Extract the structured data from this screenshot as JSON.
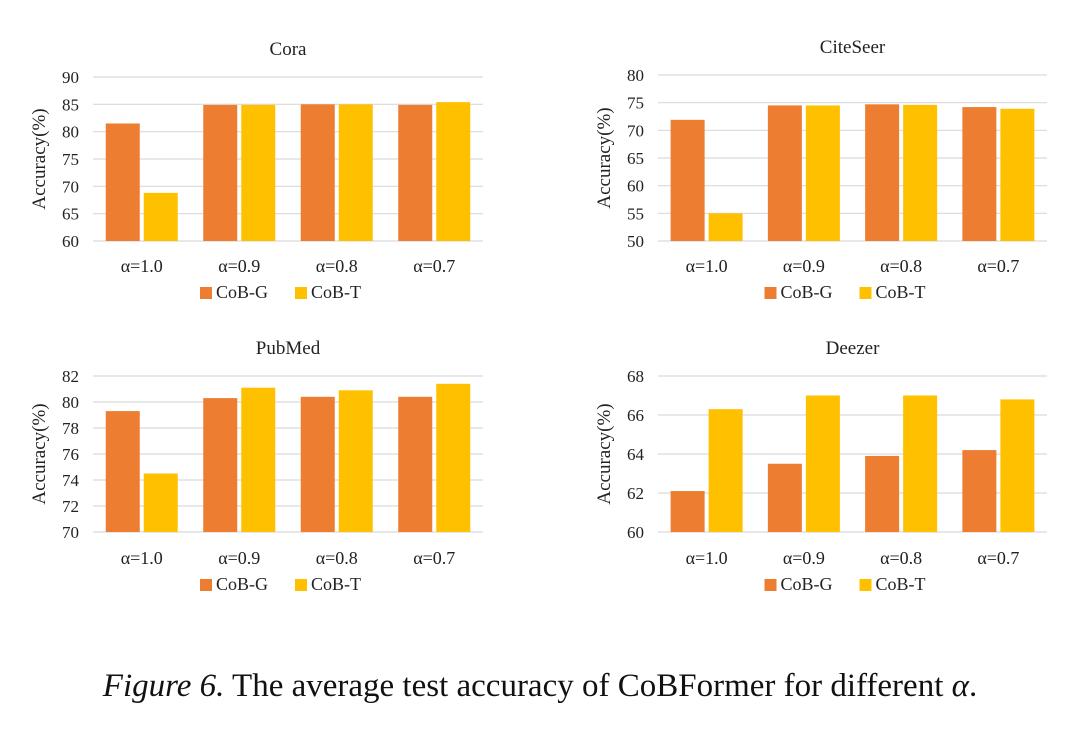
{
  "chart_data": [
    {
      "type": "bar",
      "title": "Cora",
      "ylabel": "Accuracy(%)",
      "xlabel": "",
      "categories": [
        "α=1.0",
        "α=0.9",
        "α=0.8",
        "α=0.7"
      ],
      "ylim": [
        60,
        90
      ],
      "yticks": [
        60,
        65,
        70,
        75,
        80,
        85,
        90
      ],
      "grid": true,
      "legend": "bottom-center",
      "series": [
        {
          "name": "CoB-G",
          "values": [
            81.5,
            84.9,
            85.0,
            84.9
          ]
        },
        {
          "name": "CoB-T",
          "values": [
            68.8,
            84.9,
            85.0,
            85.4
          ]
        }
      ]
    },
    {
      "type": "bar",
      "title": "CiteSeer",
      "ylabel": "Accuracy(%)",
      "xlabel": "",
      "categories": [
        "α=1.0",
        "α=0.9",
        "α=0.8",
        "α=0.7"
      ],
      "ylim": [
        50,
        80
      ],
      "yticks": [
        50,
        55,
        60,
        65,
        70,
        75,
        80
      ],
      "grid": true,
      "legend": "bottom-center",
      "series": [
        {
          "name": "CoB-G",
          "values": [
            71.9,
            74.5,
            74.7,
            74.2
          ]
        },
        {
          "name": "CoB-T",
          "values": [
            55.0,
            74.5,
            74.6,
            73.9
          ]
        }
      ]
    },
    {
      "type": "bar",
      "title": "PubMed",
      "ylabel": "Accuracy(%)",
      "xlabel": "",
      "categories": [
        "α=1.0",
        "α=0.9",
        "α=0.8",
        "α=0.7"
      ],
      "ylim": [
        70,
        82
      ],
      "yticks": [
        70,
        72,
        74,
        76,
        78,
        80,
        82
      ],
      "grid": true,
      "legend": "bottom-center",
      "series": [
        {
          "name": "CoB-G",
          "values": [
            79.3,
            80.3,
            80.4,
            80.4
          ]
        },
        {
          "name": "CoB-T",
          "values": [
            74.5,
            81.1,
            80.9,
            81.4
          ]
        }
      ]
    },
    {
      "type": "bar",
      "title": "Deezer",
      "ylabel": "Accuracy(%)",
      "xlabel": "",
      "categories": [
        "α=1.0",
        "α=0.9",
        "α=0.8",
        "α=0.7"
      ],
      "ylim": [
        60,
        68
      ],
      "yticks": [
        60,
        62,
        64,
        66,
        68
      ],
      "grid": true,
      "legend": "bottom-center",
      "series": [
        {
          "name": "CoB-G",
          "values": [
            62.1,
            63.5,
            63.9,
            64.2
          ]
        },
        {
          "name": "CoB-T",
          "values": [
            66.3,
            67.0,
            67.0,
            66.8
          ]
        }
      ]
    }
  ],
  "colors": {
    "CoB-G": "#ED7D31",
    "CoB-T": "#FFC000",
    "grid": "#D9D9D9"
  },
  "caption": {
    "lead": "Figure 6.",
    "text": " The average test accuracy of CoBFormer for different ",
    "symbol": "α",
    "end": "."
  }
}
